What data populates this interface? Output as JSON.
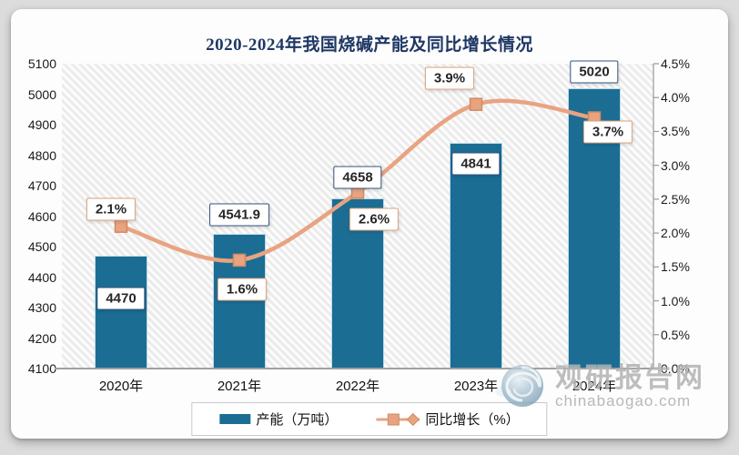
{
  "title": "2020-2024年我国烧碱产能及同比增长情况",
  "chart_data": {
    "type": "bar+line combo",
    "categories": [
      "2020年",
      "2021年",
      "2022年",
      "2023年",
      "2024年"
    ],
    "series": [
      {
        "name": "产能（万吨）",
        "type": "bar",
        "axis": "left",
        "color": "#1b6d94",
        "values": [
          4470,
          4541.9,
          4658,
          4841,
          5020
        ]
      },
      {
        "name": "同比增长（%）",
        "type": "line",
        "axis": "right",
        "color": "#e9a381",
        "values": [
          2.1,
          1.6,
          2.6,
          3.9,
          3.7
        ]
      }
    ],
    "bar_labels": [
      "4470",
      "4541.9",
      "4658",
      "4841",
      "5020"
    ],
    "line_labels": [
      "2.1%",
      "1.6%",
      "2.6%",
      "3.9%",
      "3.7%"
    ],
    "left_axis": {
      "min": 4100,
      "max": 5100,
      "step": 100,
      "ticks": [
        "5100",
        "5000",
        "4900",
        "4800",
        "4700",
        "4600",
        "4500",
        "4400",
        "4300",
        "4200",
        "4100"
      ]
    },
    "right_axis": {
      "min": 0.0,
      "max": 4.5,
      "step": 0.5,
      "ticks": [
        "4.5%",
        "4.0%",
        "3.5%",
        "3.0%",
        "2.5%",
        "2.0%",
        "1.5%",
        "1.0%",
        "0.5%",
        "0.0%"
      ]
    },
    "grid": "diagonal-hatch plot background, no gridlines",
    "legend_position": "bottom-center"
  },
  "legend": {
    "bar_label": "产能（万吨）",
    "line_label": "同比增长（%）"
  },
  "watermark": {
    "name": "观研报告网",
    "domain": "chinabaogao.com"
  },
  "colors": {
    "bar": "#1b6d94",
    "line": "#e9a381",
    "marker_stroke": "#cf8a60",
    "value_label_border": "#35547c",
    "percent_label_border": "#dba37f",
    "title": "#1f3864",
    "axis_text": "#1a1a1a",
    "axis_line": "#a0a0a0",
    "card_background": "#fdfdfe",
    "page_background": "#dcdcdc"
  }
}
